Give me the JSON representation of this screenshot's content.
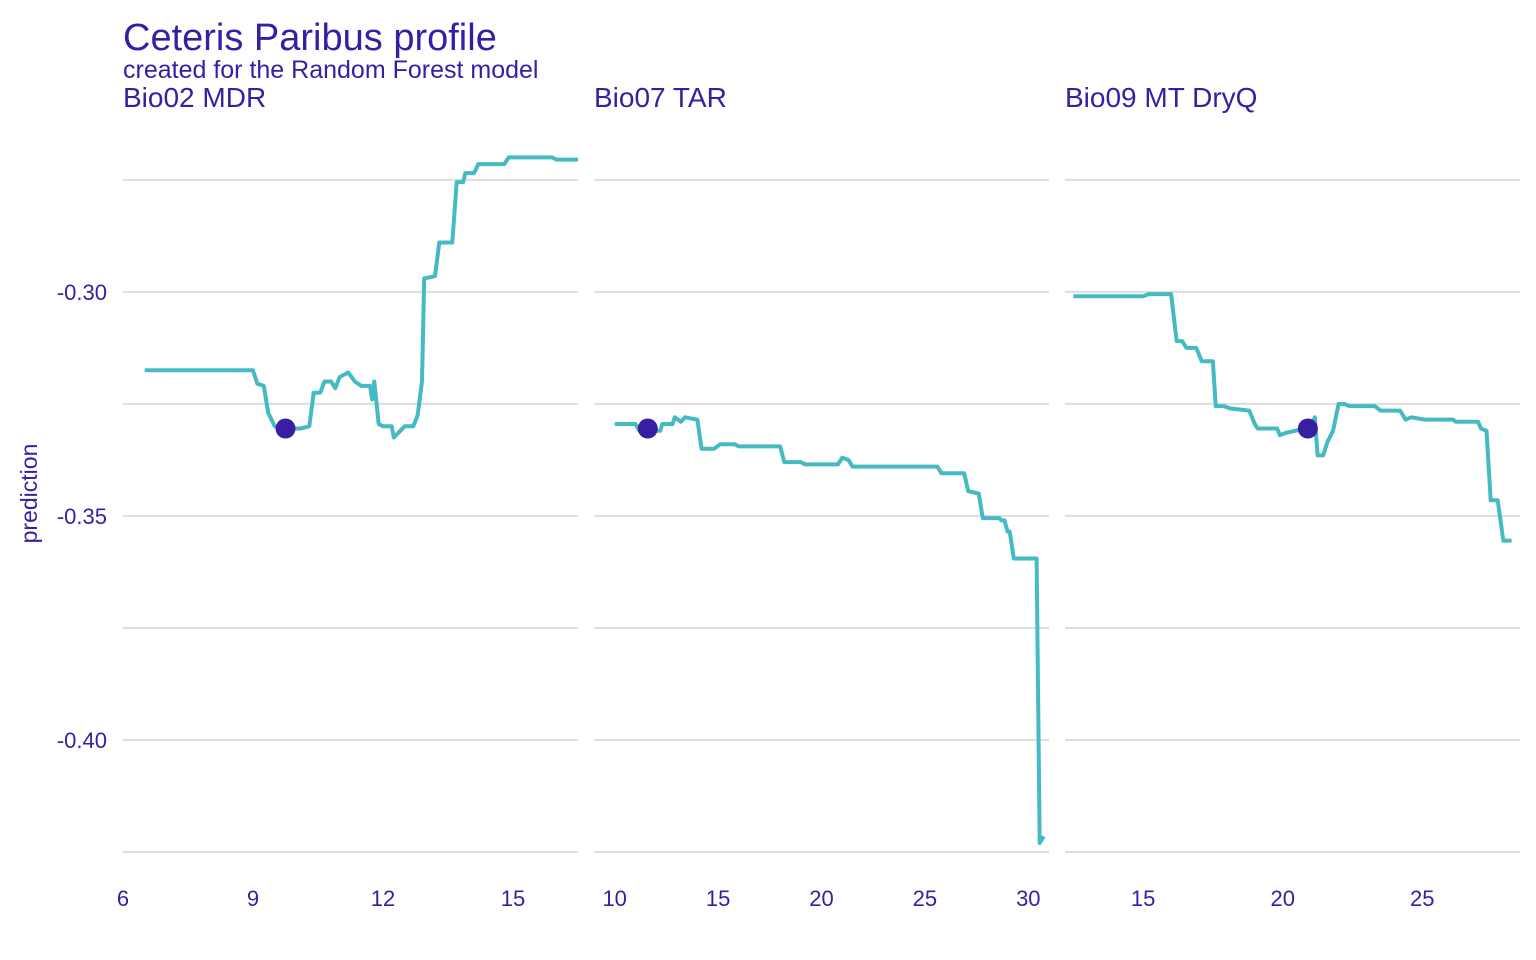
{
  "chart_data": {
    "type": "line",
    "title": "Ceteris Paribus profile",
    "subtitle": "created for the Random Forest model",
    "ylabel": "prediction",
    "ylim": [
      -0.425,
      -0.265
    ],
    "yticks": [
      -0.3,
      -0.35,
      -0.4
    ],
    "ytick_labels": [
      "-0.30",
      "-0.35",
      "-0.40"
    ],
    "grid": true,
    "colors": {
      "text": "#371ea3",
      "line": "#46bac2",
      "point": "#371ea3",
      "grid": "#dddde2"
    },
    "panels": [
      {
        "label": "Bio02  MDR",
        "xlim": [
          6,
          16.5
        ],
        "xticks": [
          6,
          9,
          12,
          15
        ],
        "xtick_labels": [
          "6",
          "9",
          "12",
          "15"
        ],
        "observation": {
          "x": 9.75,
          "y": -0.3305
        },
        "profile": [
          [
            6.5,
            -0.3175
          ],
          [
            9.0,
            -0.3175
          ],
          [
            9.1,
            -0.3205
          ],
          [
            9.25,
            -0.321
          ],
          [
            9.35,
            -0.327
          ],
          [
            9.5,
            -0.33
          ],
          [
            9.8,
            -0.3305
          ],
          [
            10.1,
            -0.3305
          ],
          [
            10.3,
            -0.33
          ],
          [
            10.4,
            -0.3225
          ],
          [
            10.55,
            -0.3225
          ],
          [
            10.65,
            -0.32
          ],
          [
            10.8,
            -0.32
          ],
          [
            10.9,
            -0.3215
          ],
          [
            11.0,
            -0.319
          ],
          [
            11.2,
            -0.318
          ],
          [
            11.35,
            -0.32
          ],
          [
            11.5,
            -0.321
          ],
          [
            11.7,
            -0.321
          ],
          [
            11.75,
            -0.324
          ],
          [
            11.8,
            -0.32
          ],
          [
            11.9,
            -0.3295
          ],
          [
            12.0,
            -0.33
          ],
          [
            12.2,
            -0.33
          ],
          [
            12.25,
            -0.3325
          ],
          [
            12.4,
            -0.331
          ],
          [
            12.5,
            -0.33
          ],
          [
            12.7,
            -0.33
          ],
          [
            12.8,
            -0.3275
          ],
          [
            12.9,
            -0.32
          ],
          [
            12.95,
            -0.297
          ],
          [
            13.2,
            -0.2965
          ],
          [
            13.3,
            -0.289
          ],
          [
            13.6,
            -0.289
          ],
          [
            13.7,
            -0.2755
          ],
          [
            13.85,
            -0.2755
          ],
          [
            13.9,
            -0.2735
          ],
          [
            14.1,
            -0.2735
          ],
          [
            14.2,
            -0.2715
          ],
          [
            14.8,
            -0.2715
          ],
          [
            14.9,
            -0.27
          ],
          [
            15.9,
            -0.27
          ],
          [
            16.0,
            -0.2705
          ],
          [
            16.5,
            -0.2705
          ]
        ]
      },
      {
        "label": "Bio07  TAR",
        "xlim": [
          9,
          31
        ],
        "xticks": [
          10,
          15,
          20,
          25,
          30
        ],
        "xtick_labels": [
          "10",
          "15",
          "20",
          "25",
          "30"
        ],
        "observation": {
          "x": 11.6,
          "y": -0.3305
        },
        "profile": [
          [
            10.0,
            -0.3295
          ],
          [
            11.0,
            -0.3295
          ],
          [
            11.2,
            -0.331
          ],
          [
            12.2,
            -0.331
          ],
          [
            12.3,
            -0.3295
          ],
          [
            12.8,
            -0.3295
          ],
          [
            12.9,
            -0.328
          ],
          [
            13.2,
            -0.329
          ],
          [
            13.4,
            -0.328
          ],
          [
            14.0,
            -0.3285
          ],
          [
            14.2,
            -0.335
          ],
          [
            14.8,
            -0.335
          ],
          [
            15.1,
            -0.334
          ],
          [
            15.8,
            -0.334
          ],
          [
            16.0,
            -0.3345
          ],
          [
            18.0,
            -0.3345
          ],
          [
            18.2,
            -0.338
          ],
          [
            19.0,
            -0.338
          ],
          [
            19.2,
            -0.3385
          ],
          [
            20.8,
            -0.3385
          ],
          [
            21.0,
            -0.337
          ],
          [
            21.3,
            -0.3375
          ],
          [
            21.5,
            -0.339
          ],
          [
            25.6,
            -0.339
          ],
          [
            25.8,
            -0.3405
          ],
          [
            26.9,
            -0.3405
          ],
          [
            27.1,
            -0.3445
          ],
          [
            27.6,
            -0.345
          ],
          [
            27.8,
            -0.3505
          ],
          [
            28.6,
            -0.3505
          ],
          [
            28.7,
            -0.351
          ],
          [
            28.85,
            -0.351
          ],
          [
            29.0,
            -0.3535
          ],
          [
            29.1,
            -0.3535
          ],
          [
            29.3,
            -0.3595
          ],
          [
            30.4,
            -0.3595
          ],
          [
            30.55,
            -0.423
          ],
          [
            30.75,
            -0.4215
          ]
        ]
      },
      {
        "label": "Bio09  MT  DryQ",
        "xlim": [
          12.2,
          28.5
        ],
        "xticks": [
          15,
          20,
          25
        ],
        "xtick_labels": [
          "15",
          "20",
          "25"
        ],
        "observation": {
          "x": 20.9,
          "y": -0.3305
        },
        "profile": [
          [
            12.5,
            -0.301
          ],
          [
            15.0,
            -0.301
          ],
          [
            15.2,
            -0.3005
          ],
          [
            16.0,
            -0.3005
          ],
          [
            16.2,
            -0.311
          ],
          [
            16.4,
            -0.311
          ],
          [
            16.55,
            -0.3125
          ],
          [
            16.9,
            -0.3125
          ],
          [
            17.1,
            -0.3155
          ],
          [
            17.5,
            -0.3155
          ],
          [
            17.6,
            -0.3255
          ],
          [
            17.9,
            -0.3255
          ],
          [
            18.1,
            -0.326
          ],
          [
            18.8,
            -0.3265
          ],
          [
            19.0,
            -0.3295
          ],
          [
            19.1,
            -0.3305
          ],
          [
            19.8,
            -0.3305
          ],
          [
            19.9,
            -0.332
          ],
          [
            20.1,
            -0.3315
          ],
          [
            20.8,
            -0.3305
          ],
          [
            21.0,
            -0.3305
          ],
          [
            21.15,
            -0.328
          ],
          [
            21.25,
            -0.3365
          ],
          [
            21.45,
            -0.3365
          ],
          [
            21.6,
            -0.3335
          ],
          [
            21.8,
            -0.331
          ],
          [
            22.0,
            -0.325
          ],
          [
            22.2,
            -0.325
          ],
          [
            22.4,
            -0.3255
          ],
          [
            23.3,
            -0.3255
          ],
          [
            23.5,
            -0.3265
          ],
          [
            24.2,
            -0.3265
          ],
          [
            24.4,
            -0.3285
          ],
          [
            24.6,
            -0.328
          ],
          [
            25.1,
            -0.3285
          ],
          [
            26.1,
            -0.3285
          ],
          [
            26.2,
            -0.329
          ],
          [
            27.0,
            -0.329
          ],
          [
            27.1,
            -0.3305
          ],
          [
            27.3,
            -0.331
          ],
          [
            27.45,
            -0.3465
          ],
          [
            27.7,
            -0.3465
          ],
          [
            27.9,
            -0.3555
          ],
          [
            28.2,
            -0.3555
          ]
        ]
      }
    ]
  }
}
